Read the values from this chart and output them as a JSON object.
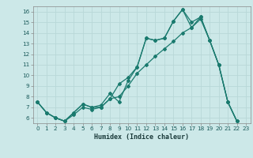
{
  "title": "",
  "xlabel": "Humidex (Indice chaleur)",
  "bg_color": "#cce8e8",
  "grid_color": "#b8d8d8",
  "line_color": "#1a7a6e",
  "xs1": [
    0,
    1,
    2,
    3,
    4,
    5,
    6,
    7,
    8,
    9,
    10,
    11,
    12,
    13,
    14,
    15,
    16,
    17,
    18,
    19,
    20,
    21,
    22
  ],
  "ys1": [
    7.5,
    6.5,
    6.0,
    5.7,
    6.5,
    7.3,
    7.0,
    7.2,
    8.3,
    7.5,
    9.5,
    10.8,
    13.5,
    13.3,
    13.5,
    15.1,
    16.2,
    15.0,
    15.5,
    13.3,
    11.0,
    7.5,
    5.7
  ],
  "xs2": [
    0,
    1,
    2,
    3,
    4,
    5,
    6,
    7,
    8,
    9,
    10,
    11,
    12,
    13,
    14,
    15,
    16,
    17,
    18,
    19,
    20,
    21,
    22
  ],
  "ys2": [
    7.5,
    6.5,
    6.0,
    5.7,
    6.3,
    7.0,
    6.8,
    7.0,
    7.8,
    8.0,
    9.0,
    10.2,
    11.0,
    11.8,
    12.5,
    13.2,
    14.0,
    14.5,
    15.3,
    13.3,
    11.0,
    7.5,
    5.7
  ],
  "xs3": [
    0,
    1,
    2,
    3,
    4,
    5,
    6,
    7,
    8,
    9,
    10,
    11,
    12,
    13,
    14,
    15,
    16,
    17,
    18,
    19,
    20,
    21,
    22
  ],
  "ys3": [
    7.5,
    6.5,
    6.0,
    5.7,
    6.5,
    7.3,
    7.0,
    7.0,
    7.8,
    9.2,
    9.8,
    10.8,
    13.5,
    13.3,
    13.5,
    15.1,
    16.2,
    14.5,
    15.5,
    13.3,
    11.0,
    7.5,
    5.7
  ],
  "xlim": [
    -0.5,
    23.5
  ],
  "ylim": [
    5.5,
    16.5
  ],
  "yticks": [
    6,
    7,
    8,
    9,
    10,
    11,
    12,
    13,
    14,
    15,
    16
  ],
  "xticks": [
    0,
    1,
    2,
    3,
    4,
    5,
    6,
    7,
    8,
    9,
    10,
    11,
    12,
    13,
    14,
    15,
    16,
    17,
    18,
    19,
    20,
    21,
    22,
    23
  ],
  "xtick_labels": [
    "0",
    "1",
    "2",
    "3",
    "4",
    "5",
    "6",
    "7",
    "8",
    "9",
    "10",
    "11",
    "12",
    "13",
    "14",
    "15",
    "16",
    "17",
    "18",
    "19",
    "20",
    "21",
    "22",
    "23"
  ],
  "ytick_labels": [
    "6",
    "7",
    "8",
    "9",
    "10",
    "11",
    "12",
    "13",
    "14",
    "15",
    "16"
  ]
}
